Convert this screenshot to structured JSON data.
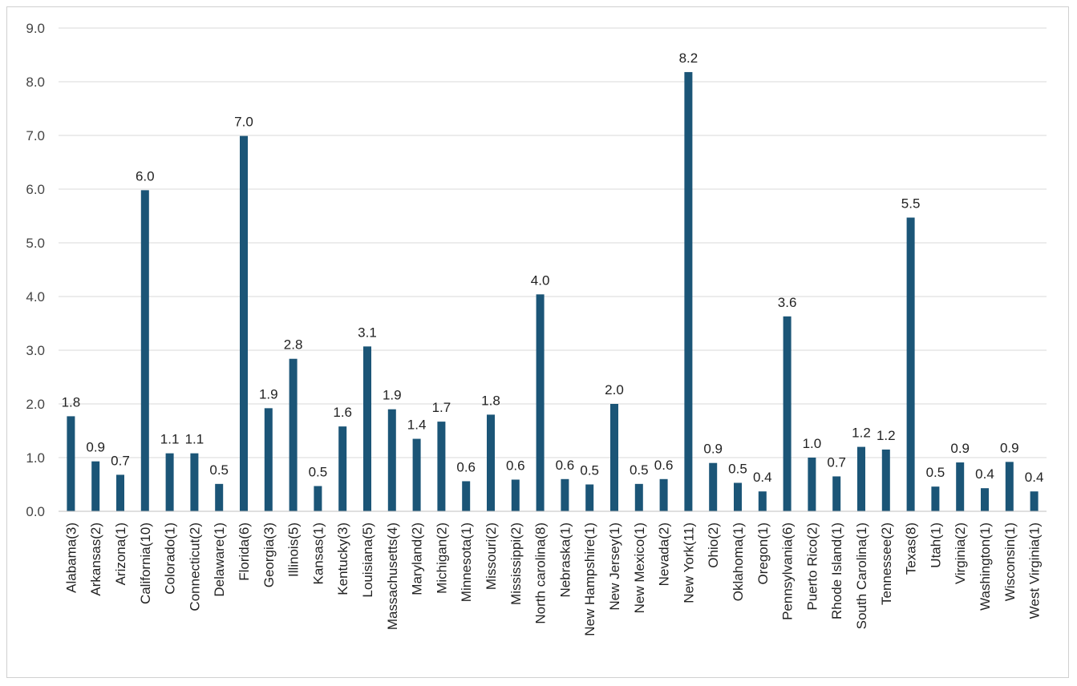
{
  "chart_data": {
    "type": "bar",
    "title": "",
    "xlabel": "",
    "ylabel": "",
    "ylim": [
      0,
      9
    ],
    "yticks": [
      "0.0",
      "1.0",
      "2.0",
      "3.0",
      "4.0",
      "5.0",
      "6.0",
      "7.0",
      "8.0",
      "9.0"
    ],
    "grid": true,
    "legend": "none",
    "bar_color": "#1b5577",
    "categories": [
      "Alabama(3)",
      "Arkansas(2)",
      "Arizona(1)",
      "California(10)",
      "Colorado(1)",
      "Connecticut(2)",
      "Delaware(1)",
      "Florida(6)",
      "Georgia(3)",
      "Illinois(5)",
      "Kansas(1)",
      "Kentucky(3)",
      "Louisiana(5)",
      "Massachusetts(4)",
      "Maryland(2)",
      "Michigan(2)",
      "Minnesota(1)",
      "Missouri(2)",
      "Mississippi(2)",
      "North carolina(8)",
      "Nebraska(1)",
      "New Hampshire(1)",
      "New Jersey(1)",
      "New Mexico(1)",
      "Nevada(2)",
      "New York(11)",
      "Ohio(2)",
      "Oklahoma(1)",
      "Oregon(1)",
      "Pennsylvania(6)",
      "Puerto Rico(2)",
      "Rhode Island(1)",
      "South Carolina(1)",
      "Tennessee(2)",
      "Texas(8)",
      "Utah(1)",
      "Virginia(2)",
      "Washington(1)",
      "Wisconsin(1)",
      "West Virginia(1)"
    ],
    "values": [
      1.77,
      0.93,
      0.68,
      5.98,
      1.08,
      1.08,
      0.51,
      6.99,
      1.92,
      2.84,
      0.47,
      1.58,
      3.07,
      1.9,
      1.35,
      1.67,
      0.56,
      1.8,
      0.59,
      4.04,
      0.6,
      0.5,
      2.0,
      0.51,
      0.6,
      8.18,
      0.9,
      0.53,
      0.37,
      3.63,
      1.0,
      0.65,
      1.2,
      1.15,
      5.47,
      0.46,
      0.91,
      0.43,
      0.92,
      0.37
    ],
    "labels": [
      "1.8",
      "0.9",
      "0.7",
      "6.0",
      "1.1",
      "1.1",
      "0.5",
      "7.0",
      "1.9",
      "2.8",
      "0.5",
      "1.6",
      "3.1",
      "1.9",
      "1.4",
      "1.7",
      "0.6",
      "1.8",
      "0.6",
      "4.0",
      "0.6",
      "0.5",
      "2.0",
      "0.5",
      "0.6",
      "8.2",
      "0.9",
      "0.5",
      "0.4",
      "3.6",
      "1.0",
      "0.7",
      "1.2",
      "1.2",
      "5.5",
      "0.5",
      "0.9",
      "0.4",
      "0.9",
      "0.4"
    ]
  }
}
